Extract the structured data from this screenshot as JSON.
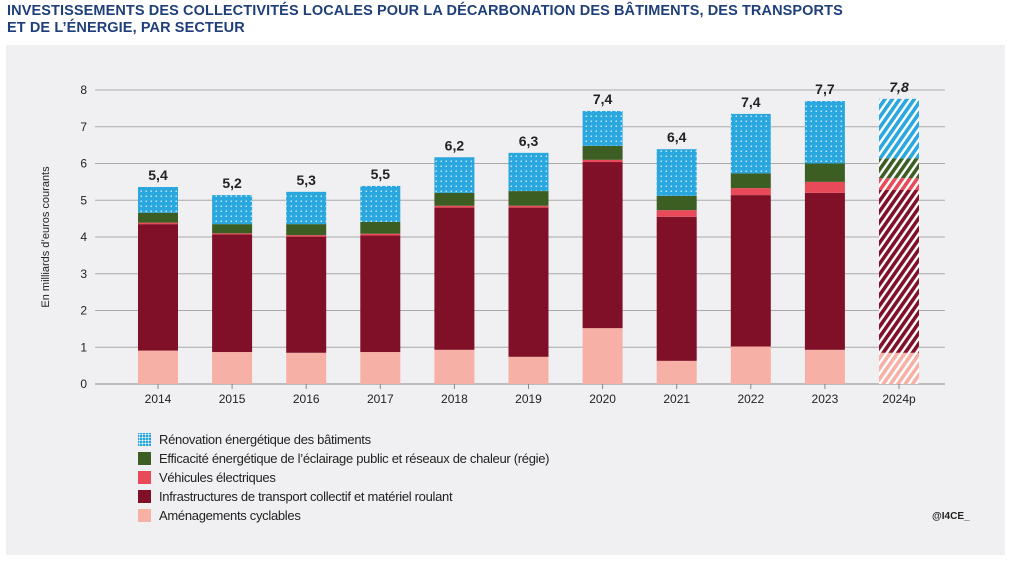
{
  "title_lines": [
    "INVESTISSEMENTS DES COLLECTIVITÉS LOCALES POUR LA DÉCARBONATION DES BÂTIMENTS, DES TRANSPORTS",
    "ET DE L’ÉNERGIE, PAR SECTEUR"
  ],
  "credit": "@I4CE_",
  "chart_data": {
    "type": "bar",
    "stacked": true,
    "title": "INVESTISSEMENTS DES COLLECTIVITÉS LOCALES POUR LA DÉCARBONATION DES BÂTIMENTS, DES TRANSPORTS ET DE L’ÉNERGIE, PAR SECTEUR",
    "ylabel": "En milliards d’euros courants",
    "xlabel": "",
    "ylim": [
      0,
      8
    ],
    "yticks": [
      0,
      1,
      2,
      3,
      4,
      5,
      6,
      7,
      8
    ],
    "grid": true,
    "legend_position": "bottom-left",
    "categories": [
      "2014",
      "2015",
      "2016",
      "2017",
      "2018",
      "2019",
      "2020",
      "2021",
      "2022",
      "2023",
      "2024p"
    ],
    "projected_categories": [
      "2024p"
    ],
    "totals_labels": [
      "5,4",
      "5,2",
      "5,3",
      "5,5",
      "6,2",
      "6,3",
      "7,4",
      "6,4",
      "7,4",
      "7,7",
      "7,8"
    ],
    "series": [
      {
        "name": "Aménagements cyclables",
        "color": "#f7b0a6",
        "pattern": "solid",
        "values": [
          0.91,
          0.87,
          0.85,
          0.87,
          0.93,
          0.74,
          1.52,
          0.63,
          1.02,
          0.93,
          0.85
        ]
      },
      {
        "name": "Infrastructures de transport collectif et matériel roulant",
        "color": "#7f1028",
        "pattern": "solid",
        "values": [
          3.44,
          3.2,
          3.16,
          3.17,
          3.87,
          4.06,
          4.52,
          3.92,
          4.12,
          4.27,
          4.43
        ]
      },
      {
        "name": "Véhicules électriques",
        "color": "#e84a5a",
        "pattern": "solid",
        "values": [
          0.04,
          0.03,
          0.04,
          0.05,
          0.05,
          0.05,
          0.06,
          0.18,
          0.19,
          0.3,
          0.32
        ]
      },
      {
        "name": "Efficacité énergétique de l’éclairage public et réseaux de chaleur (régie)",
        "color": "#3d5e23",
        "pattern": "solid",
        "values": [
          0.27,
          0.25,
          0.3,
          0.32,
          0.35,
          0.4,
          0.38,
          0.39,
          0.4,
          0.5,
          0.54
        ]
      },
      {
        "name": "Rénovation énergétique des bâtiments",
        "color": "#2aa7df",
        "pattern": "dotted",
        "values": [
          0.7,
          0.79,
          0.88,
          0.98,
          0.97,
          1.04,
          0.95,
          1.27,
          1.62,
          1.7,
          1.62
        ]
      }
    ]
  },
  "legend_order": [
    4,
    3,
    2,
    1,
    0
  ]
}
